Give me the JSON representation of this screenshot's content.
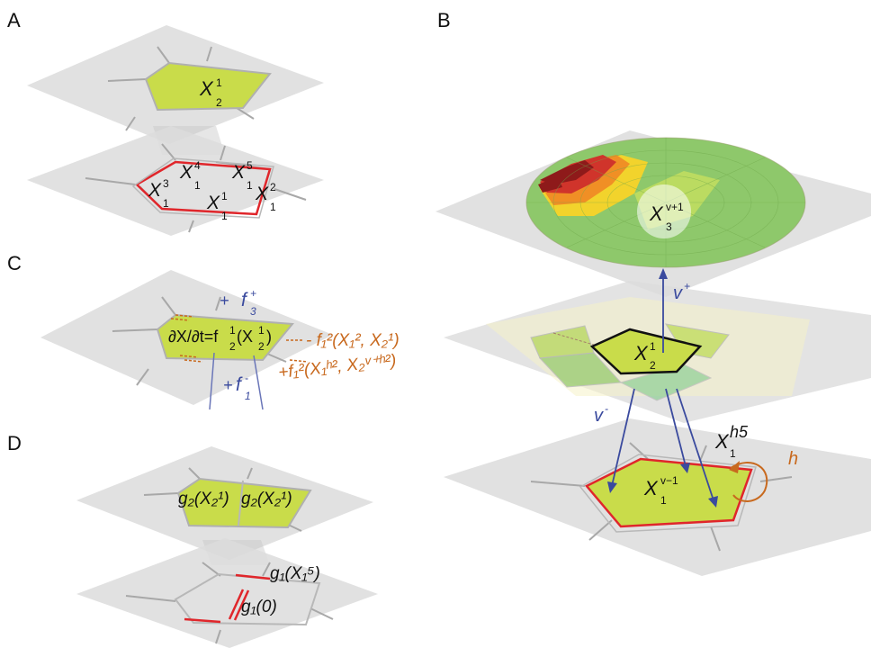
{
  "panels": {
    "A": {
      "letter": "A",
      "top_label": {
        "base": "X",
        "sub": "2",
        "sup": "1"
      },
      "cells": [
        {
          "base": "X",
          "sub": "1",
          "sup": "4"
        },
        {
          "base": "X",
          "sub": "1",
          "sup": "5"
        },
        {
          "base": "X",
          "sub": "1",
          "sup": "3"
        },
        {
          "base": "X",
          "sub": "1",
          "sup": "1"
        },
        {
          "base": "X",
          "sub": "1",
          "sup": "2"
        }
      ]
    },
    "B": {
      "letter": "B",
      "top_label": {
        "base": "X",
        "sub": "3",
        "sup": "v+1"
      },
      "mid_label": {
        "base": "X",
        "sub": "2",
        "sup": "1"
      },
      "bottom_label": {
        "base": "X",
        "sub": "1",
        "sup": "v−1"
      },
      "neighbor_label": {
        "base": "X",
        "sub": "1",
        "sup": "h5"
      },
      "v_plus": {
        "base": "v",
        "sup": "+"
      },
      "v_minus": {
        "base": "v",
        "sup": "-"
      },
      "h": "h"
    },
    "C": {
      "letter": "C",
      "f3_plus": {
        "prefix": "+ ",
        "base": "f",
        "sub": "3",
        "sup": "+"
      },
      "equation": {
        "lhs": "∂X/∂t=f",
        "sub": "2",
        "sup": "1",
        "arg_open": "(X",
        "arg_sub": "2",
        "arg_sup": "1",
        "arg_close": ")"
      },
      "minus_term": "- f₁²(X₁², X₂¹)",
      "plus_term": "+f₁²(X₁ʰ², X₂ᵛ⁺ʰ²)",
      "f1_minus": {
        "prefix": "+",
        "base": "f",
        "sub": "1",
        "sup": "-"
      }
    },
    "D": {
      "letter": "D",
      "g2_left": "g₂(X₂¹)",
      "g2_right": "g₂(X₂¹)",
      "g1_x15": "g₁(X₁⁵)",
      "g1_zero": "g₁(0)"
    }
  },
  "colors": {
    "plane": "#d9d9d9",
    "cell_fill": "#c9dc4a",
    "cell_edge": "#b0b0b0",
    "red_edge": "#e0262b",
    "blue": "#3a4a9e",
    "orange": "#c8691e"
  }
}
